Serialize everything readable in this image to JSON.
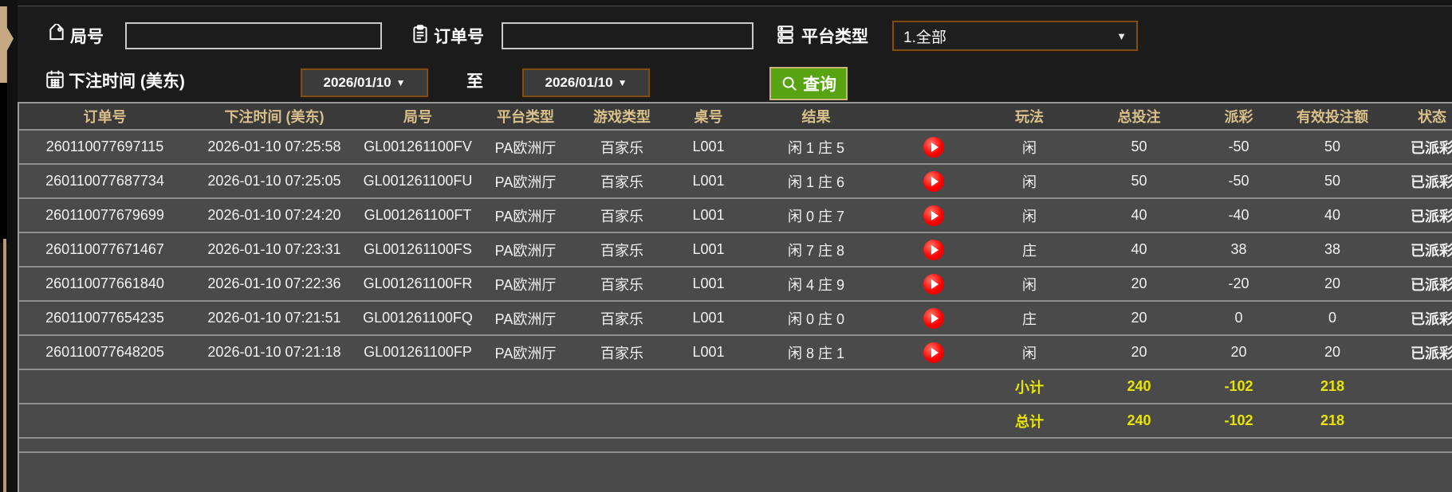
{
  "filters": {
    "round_label": "局号",
    "round_value": "",
    "order_label": "订单号",
    "order_value": "",
    "platform_label": "平台类型",
    "platform_value": "1.全部",
    "bet_time_label": "下注时间 (美东)",
    "date_from": "2026/01/10",
    "to_label": "至",
    "date_to": "2026/01/10",
    "query_label": "查询"
  },
  "table": {
    "headers": [
      "订单号",
      "下注时间 (美东)",
      "局号",
      "平台类型",
      "游戏类型",
      "桌号",
      "结果",
      "",
      "玩法",
      "总投注",
      "派彩",
      "有效投注额",
      "状态"
    ],
    "rows": [
      {
        "order_id": "260110077697115",
        "bet_time": "2026-01-10 07:25:58",
        "round_id": "GL001261100FV",
        "platform": "PA欧洲厅",
        "game": "百家乐",
        "table_no": "L001",
        "result": "闲 1 庄 5",
        "play": "闲",
        "total_bet": "50",
        "payout": "-50",
        "payout_color": "green",
        "valid_bet": "50",
        "status": "已派彩"
      },
      {
        "order_id": "260110077687734",
        "bet_time": "2026-01-10 07:25:05",
        "round_id": "GL001261100FU",
        "platform": "PA欧洲厅",
        "game": "百家乐",
        "table_no": "L001",
        "result": "闲 1 庄 6",
        "play": "闲",
        "total_bet": "50",
        "payout": "-50",
        "payout_color": "green",
        "valid_bet": "50",
        "status": "已派彩"
      },
      {
        "order_id": "260110077679699",
        "bet_time": "2026-01-10 07:24:20",
        "round_id": "GL001261100FT",
        "platform": "PA欧洲厅",
        "game": "百家乐",
        "table_no": "L001",
        "result": "闲 0 庄 7",
        "play": "闲",
        "total_bet": "40",
        "payout": "-40",
        "payout_color": "green",
        "valid_bet": "40",
        "status": "已派彩"
      },
      {
        "order_id": "260110077671467",
        "bet_time": "2026-01-10 07:23:31",
        "round_id": "GL001261100FS",
        "platform": "PA欧洲厅",
        "game": "百家乐",
        "table_no": "L001",
        "result": "闲 7 庄 8",
        "play": "庄",
        "total_bet": "40",
        "payout": "38",
        "payout_color": "red",
        "valid_bet": "38",
        "status": "已派彩"
      },
      {
        "order_id": "260110077661840",
        "bet_time": "2026-01-10 07:22:36",
        "round_id": "GL001261100FR",
        "platform": "PA欧洲厅",
        "game": "百家乐",
        "table_no": "L001",
        "result": "闲 4 庄 9",
        "play": "闲",
        "total_bet": "20",
        "payout": "-20",
        "payout_color": "green",
        "valid_bet": "20",
        "status": "已派彩"
      },
      {
        "order_id": "260110077654235",
        "bet_time": "2026-01-10 07:21:51",
        "round_id": "GL001261100FQ",
        "platform": "PA欧洲厅",
        "game": "百家乐",
        "table_no": "L001",
        "result": "闲 0 庄 0",
        "play": "庄",
        "total_bet": "20",
        "payout": "0",
        "payout_color": "neutral",
        "valid_bet": "0",
        "status": "已派彩"
      },
      {
        "order_id": "260110077648205",
        "bet_time": "2026-01-10 07:21:18",
        "round_id": "GL001261100FP",
        "platform": "PA欧洲厅",
        "game": "百家乐",
        "table_no": "L001",
        "result": "闲 8 庄 1",
        "play": "闲",
        "total_bet": "20",
        "payout": "20",
        "payout_color": "red",
        "valid_bet": "20",
        "status": "已派彩"
      }
    ],
    "subtotal": {
      "label": "小计",
      "total_bet": "240",
      "payout": "-102",
      "valid_bet": "218"
    },
    "total": {
      "label": "总计",
      "total_bet": "240",
      "payout": "-102",
      "valid_bet": "218"
    }
  },
  "colors": {
    "accent_green": "#57a312",
    "header_tan": "#d9c08a",
    "payout_green": "#5adc1e",
    "payout_red": "#c41a3c",
    "status_green": "#2fd32f",
    "total_yellow": "#e8e400",
    "play_icon_red": "#f00000",
    "picker_border_brown": "#7d4e17"
  }
}
